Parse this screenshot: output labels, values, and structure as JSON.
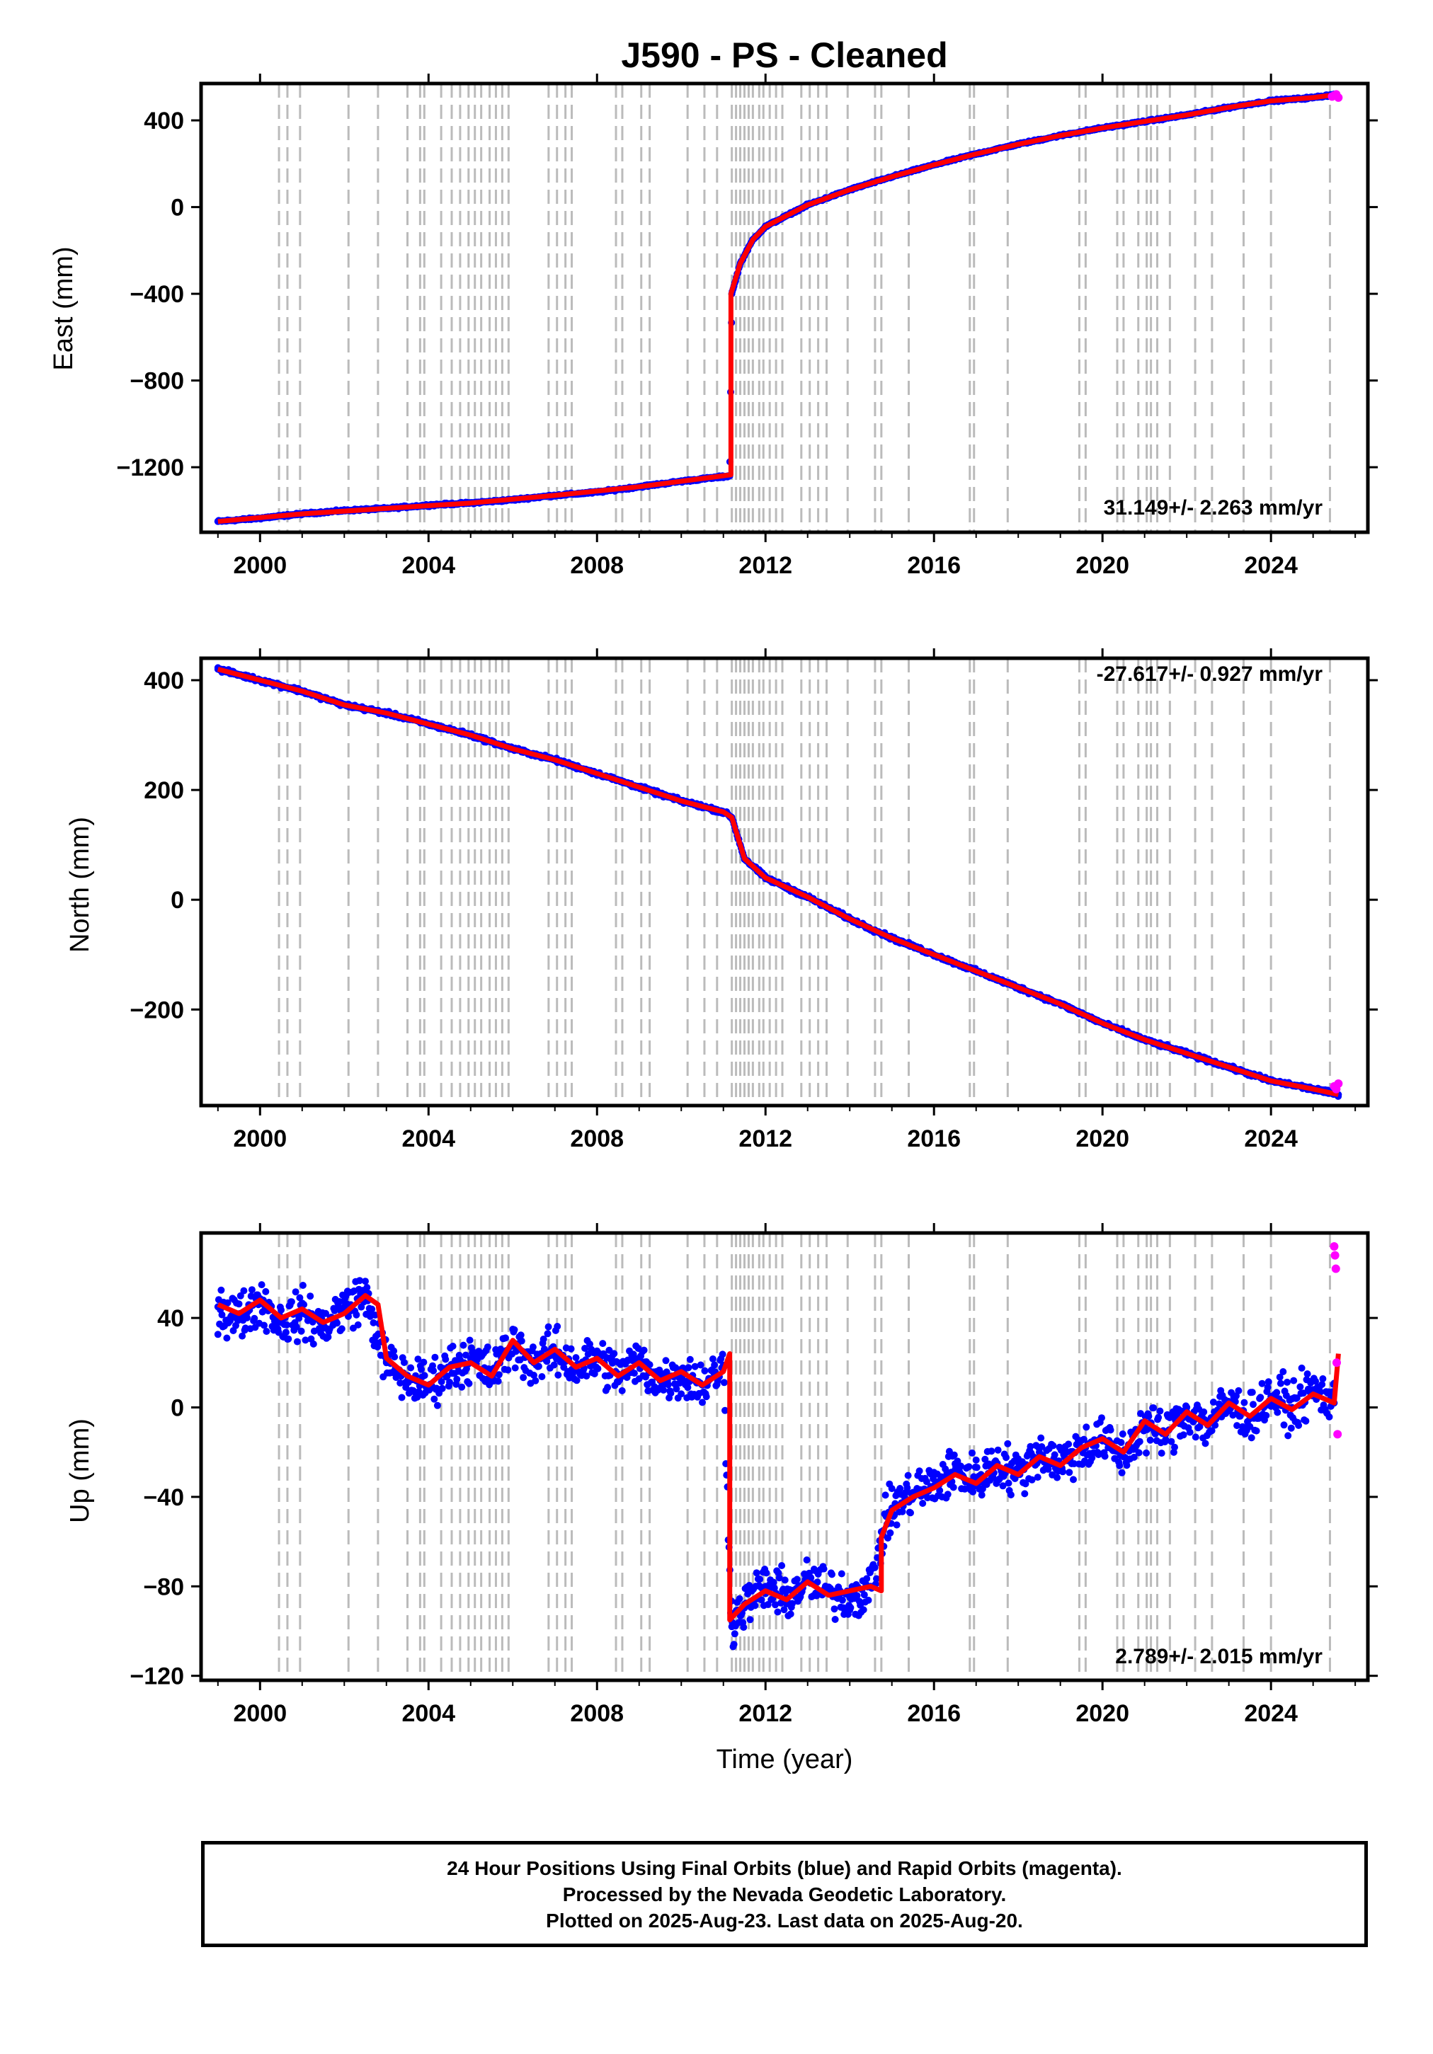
{
  "chart_data": [
    {
      "type": "scatter",
      "title": "J590  - PS - Cleaned",
      "ylabel": "East (mm)",
      "xlabel": "",
      "xlim": [
        1998.6,
        2026.3
      ],
      "ylim": [
        -1500,
        570
      ],
      "xticks": [
        2000,
        2004,
        2008,
        2012,
        2016,
        2020,
        2024
      ],
      "xtick_labels": [
        "2000",
        "2004",
        "2008",
        "2012",
        "2016",
        "2020",
        "2024"
      ],
      "yticks": [
        -1200,
        -800,
        -400,
        0,
        400
      ],
      "ytick_labels": [
        "−1200",
        "−800",
        "−400",
        "0",
        "400"
      ],
      "grid": false,
      "rate_label": "31.149+/- 2.263 mm/yr",
      "series": [
        {
          "name": "Final Orbits",
          "color": "#0000ff",
          "x": [
            1999.0,
            2000.0,
            2001.0,
            2002.0,
            2003.0,
            2004.0,
            2005.0,
            2006.0,
            2007.0,
            2008.0,
            2009.0,
            2010.0,
            2011.15,
            2011.2,
            2011.4,
            2011.7,
            2012.0,
            2012.5,
            2013.0,
            2014.0,
            2015.0,
            2016.0,
            2017.0,
            2018.0,
            2019.0,
            2020.0,
            2021.0,
            2022.0,
            2023.0,
            2024.0,
            2025.0,
            2025.5
          ],
          "y": [
            -1450,
            -1435,
            -1415,
            -1400,
            -1390,
            -1375,
            -1365,
            -1350,
            -1330,
            -1315,
            -1290,
            -1265,
            -1240,
            -400,
            -260,
            -150,
            -90,
            -40,
            10,
            80,
            140,
            195,
            245,
            290,
            330,
            365,
            395,
            425,
            460,
            490,
            505,
            520
          ]
        },
        {
          "name": "Rapid Orbits",
          "color": "#ff00ff",
          "x": [
            2025.45,
            2025.5,
            2025.55,
            2025.6
          ],
          "y": [
            510,
            515,
            520,
            505
          ]
        }
      ],
      "model": {
        "name": "fit",
        "color": "#ff0000",
        "x": [
          1999.0,
          2001.0,
          2003.0,
          2005.0,
          2007.0,
          2009.0,
          2011.18,
          2011.18,
          2011.4,
          2011.7,
          2012.0,
          2012.5,
          2013.0,
          2014.0,
          2015.0,
          2016.0,
          2017.0,
          2018.0,
          2019.0,
          2020.0,
          2021.0,
          2022.0,
          2023.0,
          2024.0,
          2025.0,
          2025.6
        ],
        "y": [
          -1450,
          -1415,
          -1390,
          -1365,
          -1330,
          -1290,
          -1235,
          -400,
          -260,
          -150,
          -90,
          -40,
          10,
          80,
          140,
          195,
          245,
          290,
          330,
          365,
          395,
          425,
          460,
          490,
          505,
          520
        ]
      }
    },
    {
      "type": "scatter",
      "title": "",
      "ylabel": "North (mm)",
      "xlabel": "",
      "xlim": [
        1998.6,
        2026.3
      ],
      "ylim": [
        -375,
        440
      ],
      "xticks": [
        2000,
        2004,
        2008,
        2012,
        2016,
        2020,
        2024
      ],
      "xtick_labels": [
        "2000",
        "2004",
        "2008",
        "2012",
        "2016",
        "2020",
        "2024"
      ],
      "yticks": [
        -200,
        0,
        200,
        400
      ],
      "ytick_labels": [
        "−200",
        "0",
        "200",
        "400"
      ],
      "grid": false,
      "rate_label": "-27.617+/- 0.927 mm/yr",
      "series": [
        {
          "name": "Final Orbits",
          "color": "#0000ff",
          "x": [
            1999.0,
            2000.0,
            2001.0,
            2002.0,
            2003.0,
            2004.0,
            2005.0,
            2006.0,
            2007.0,
            2008.0,
            2009.0,
            2010.0,
            2011.0,
            2011.2,
            2011.5,
            2012.0,
            2013.0,
            2014.0,
            2015.0,
            2016.0,
            2017.0,
            2018.0,
            2019.0,
            2020.0,
            2021.0,
            2022.0,
            2023.0,
            2024.0,
            2025.0,
            2025.6
          ],
          "y": [
            420,
            400,
            380,
            355,
            340,
            320,
            300,
            275,
            255,
            230,
            205,
            180,
            160,
            150,
            75,
            40,
            5,
            -35,
            -70,
            -100,
            -130,
            -160,
            -190,
            -225,
            -255,
            -280,
            -305,
            -330,
            -345,
            -355
          ]
        },
        {
          "name": "Rapid Orbits",
          "color": "#ff00ff",
          "x": [
            2025.5,
            2025.55,
            2025.6
          ],
          "y": [
            -340,
            -345,
            -335
          ]
        }
      ],
      "model": {
        "name": "fit",
        "color": "#ff0000",
        "x": [
          1999.0,
          2000.0,
          2001.0,
          2002.0,
          2003.0,
          2004.0,
          2005.0,
          2006.0,
          2007.0,
          2008.0,
          2009.0,
          2010.0,
          2011.0,
          2011.2,
          2011.5,
          2012.0,
          2013.0,
          2014.0,
          2015.0,
          2016.0,
          2017.0,
          2018.0,
          2019.0,
          2020.0,
          2021.0,
          2022.0,
          2023.0,
          2024.0,
          2025.0,
          2025.6
        ],
        "y": [
          420,
          400,
          380,
          355,
          340,
          320,
          300,
          275,
          255,
          230,
          205,
          180,
          160,
          150,
          75,
          40,
          5,
          -35,
          -70,
          -100,
          -130,
          -160,
          -190,
          -225,
          -255,
          -280,
          -305,
          -330,
          -345,
          -355
        ]
      }
    },
    {
      "type": "scatter",
      "title": "",
      "ylabel": "Up (mm)",
      "xlabel": "Time (year)",
      "xlim": [
        1998.6,
        2026.3
      ],
      "ylim": [
        -122,
        78
      ],
      "xticks": [
        2000,
        2004,
        2008,
        2012,
        2016,
        2020,
        2024
      ],
      "xtick_labels": [
        "2000",
        "2004",
        "2008",
        "2012",
        "2016",
        "2020",
        "2024"
      ],
      "yticks": [
        -120,
        -80,
        -40,
        0,
        40
      ],
      "ytick_labels": [
        "−120",
        "−80",
        "−40",
        "0",
        "40"
      ],
      "grid": false,
      "rate_label": "2.789+/- 2.015 mm/yr",
      "series": [
        {
          "name": "Final Orbits",
          "color": "#0000ff",
          "x": [
            1999.0,
            1999.5,
            2000.0,
            2000.5,
            2001.0,
            2001.5,
            2002.0,
            2002.5,
            2003.0,
            2003.5,
            2004.0,
            2004.5,
            2005.0,
            2005.5,
            2006.0,
            2006.5,
            2007.0,
            2007.5,
            2008.0,
            2008.5,
            2009.0,
            2009.5,
            2010.0,
            2010.5,
            2011.0,
            2011.2,
            2011.5,
            2012.0,
            2012.5,
            2013.0,
            2013.5,
            2014.0,
            2014.5,
            2014.8,
            2015.0,
            2015.5,
            2016.0,
            2016.5,
            2017.0,
            2017.5,
            2018.0,
            2018.5,
            2019.0,
            2019.5,
            2020.0,
            2020.5,
            2021.0,
            2021.5,
            2022.0,
            2022.5,
            2023.0,
            2023.5,
            2024.0,
            2024.5,
            2025.0,
            2025.5
          ],
          "y": [
            45,
            40,
            48,
            38,
            42,
            36,
            45,
            50,
            20,
            12,
            10,
            18,
            22,
            15,
            28,
            20,
            25,
            18,
            22,
            15,
            20,
            12,
            15,
            10,
            18,
            -98,
            -88,
            -80,
            -85,
            -78,
            -82,
            -85,
            -80,
            -55,
            -45,
            -38,
            -35,
            -28,
            -32,
            -25,
            -30,
            -20,
            -25,
            -18,
            -15,
            -22,
            -8,
            -12,
            -2,
            -8,
            2,
            -5,
            5,
            0,
            8,
            2
          ]
        },
        {
          "name": "Rapid Orbits",
          "color": "#ff00ff",
          "x": [
            2025.5,
            2025.52,
            2025.54,
            2025.56,
            2025.58
          ],
          "y": [
            72,
            68,
            62,
            20,
            -12
          ]
        }
      ],
      "model": {
        "name": "fit",
        "color": "#ff0000",
        "x": [
          1999.0,
          1999.5,
          2000.0,
          2000.5,
          2001.0,
          2001.5,
          2002.0,
          2002.5,
          2002.8,
          2003.0,
          2003.5,
          2004.0,
          2004.5,
          2005.0,
          2005.5,
          2006.0,
          2006.5,
          2007.0,
          2007.5,
          2008.0,
          2008.5,
          2009.0,
          2009.5,
          2010.0,
          2010.5,
          2011.0,
          2011.15,
          2011.15,
          2011.5,
          2012.0,
          2012.5,
          2013.0,
          2013.5,
          2014.0,
          2014.5,
          2014.75,
          2014.75,
          2015.0,
          2015.5,
          2016.0,
          2016.5,
          2017.0,
          2017.5,
          2018.0,
          2018.5,
          2019.0,
          2019.5,
          2020.0,
          2020.5,
          2021.0,
          2021.5,
          2022.0,
          2022.5,
          2023.0,
          2023.5,
          2024.0,
          2024.5,
          2025.0,
          2025.5,
          2025.6
        ],
        "y": [
          46,
          42,
          48,
          40,
          44,
          38,
          42,
          50,
          46,
          22,
          14,
          10,
          18,
          20,
          14,
          30,
          20,
          26,
          18,
          22,
          14,
          20,
          12,
          16,
          10,
          16,
          24,
          -95,
          -88,
          -82,
          -86,
          -78,
          -84,
          -82,
          -80,
          -82,
          -58,
          -46,
          -40,
          -36,
          -30,
          -34,
          -26,
          -30,
          -22,
          -26,
          -18,
          -14,
          -20,
          -6,
          -12,
          -2,
          -8,
          2,
          -4,
          4,
          -1,
          6,
          2,
          24
        ]
      }
    }
  ],
  "event_lines": {
    "color": "#bbbbbb",
    "years": [
      2000.45,
      2000.65,
      2000.95,
      2002.1,
      2002.8,
      2003.5,
      2003.8,
      2003.9,
      2004.3,
      2004.55,
      2004.75,
      2004.95,
      2005.1,
      2005.25,
      2005.45,
      2005.6,
      2005.75,
      2005.9,
      2006.85,
      2007.05,
      2007.25,
      2007.4,
      2008.45,
      2008.6,
      2009.05,
      2009.25,
      2010.15,
      2010.55,
      2010.85,
      2011.2,
      2011.3,
      2011.4,
      2011.5,
      2011.6,
      2011.7,
      2011.85,
      2011.95,
      2012.1,
      2012.25,
      2012.4,
      2012.85,
      2013.05,
      2013.25,
      2013.45,
      2013.95,
      2014.6,
      2014.75,
      2015.4,
      2016.85,
      2016.95,
      2017.75,
      2019.45,
      2019.6,
      2020.35,
      2020.5,
      2020.85,
      2021.05,
      2021.15,
      2021.3,
      2021.6,
      2022.2,
      2022.6,
      2023.35,
      2024.0,
      2025.4
    ]
  },
  "footer": {
    "line1": "24 Hour Positions Using Final Orbits (blue) and Rapid Orbits (magenta).",
    "line2": "Processed by the Nevada Geodetic Laboratory.",
    "line3": "Plotted on 2025-Aug-23. Last data on 2025-Aug-20."
  }
}
